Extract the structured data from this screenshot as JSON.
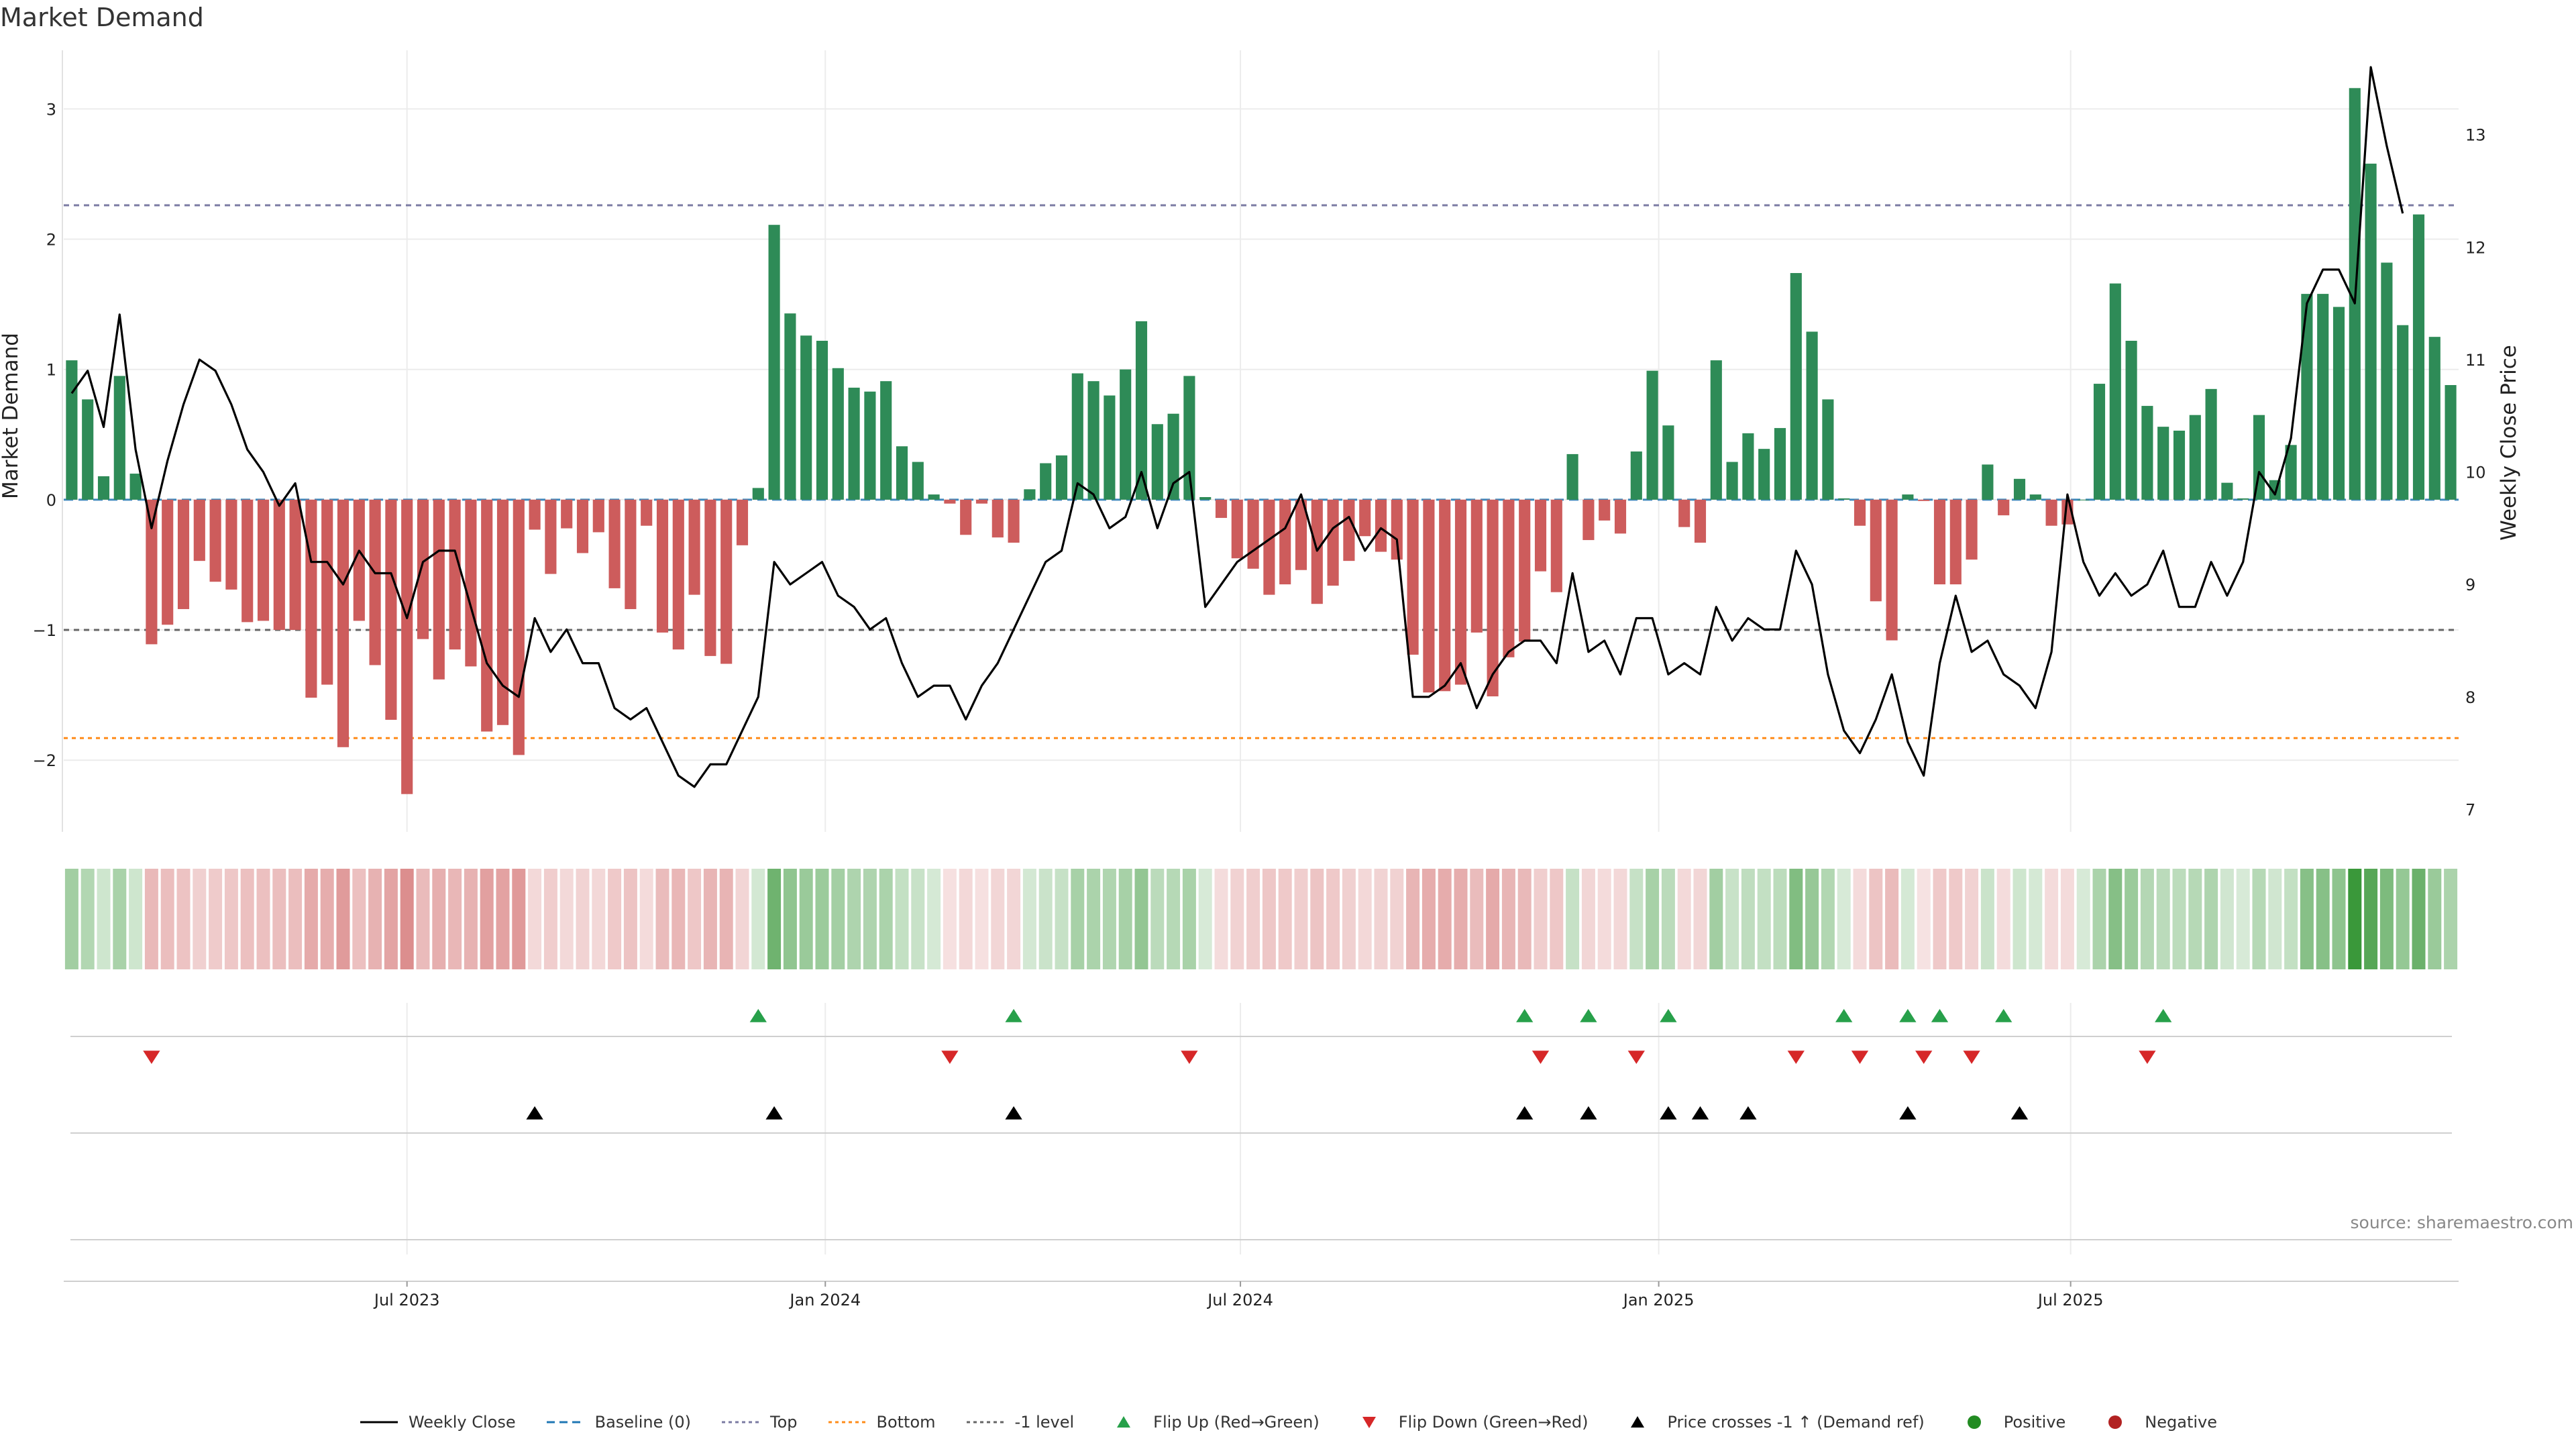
{
  "chart_data": {
    "type": "bar",
    "title": "Market Demand",
    "ylabel_left": "Market Demand",
    "ylabel_right": "Weekly Close Price",
    "ylim_left": [
      -2.55,
      3.45
    ],
    "ylim_right": [
      6.8,
      13.75
    ],
    "yticks_left": [
      3,
      2,
      1,
      0,
      -1,
      -2
    ],
    "yticks_left_labels": [
      "3",
      "2",
      "1",
      "0",
      "−1",
      "−2"
    ],
    "yticks_right": [
      13,
      12,
      11,
      10,
      9,
      8,
      7
    ],
    "yticks_right_labels": [
      "13",
      "12",
      "11",
      "10",
      "9",
      "8",
      "7"
    ],
    "xticks": [
      {
        "week": 21.5,
        "label": "Jul 2023"
      },
      {
        "week": 47.7,
        "label": "Jan 2024"
      },
      {
        "week": 73.7,
        "label": "Jul 2024"
      },
      {
        "week": 99.9,
        "label": "Jan 2025"
      },
      {
        "week": 125.7,
        "label": "Jul 2025"
      }
    ],
    "levels": {
      "top": 2.26,
      "bottom": -1.83,
      "minus_one": -1.0,
      "baseline": 0
    },
    "demand": [
      1.07,
      0.77,
      0.18,
      0.95,
      0.2,
      -1.11,
      -0.96,
      -0.84,
      -0.47,
      -0.63,
      -0.69,
      -0.94,
      -0.93,
      -1.0,
      -1.0,
      -1.52,
      -1.42,
      -1.9,
      -0.93,
      -1.27,
      -1.69,
      -2.26,
      -1.07,
      -1.38,
      -1.15,
      -1.28,
      -1.78,
      -1.73,
      -1.96,
      -0.23,
      -0.57,
      -0.22,
      -0.41,
      -0.25,
      -0.68,
      -0.84,
      -0.2,
      -1.02,
      -1.15,
      -0.73,
      -1.2,
      -1.26,
      -0.35,
      0.09,
      2.11,
      1.43,
      1.26,
      1.22,
      1.01,
      0.86,
      0.83,
      0.91,
      0.41,
      0.29,
      0.04,
      -0.03,
      -0.27,
      -0.03,
      -0.29,
      -0.33,
      0.08,
      0.28,
      0.34,
      0.97,
      0.91,
      0.8,
      1.0,
      1.37,
      0.58,
      0.66,
      0.95,
      0.02,
      -0.14,
      -0.45,
      -0.53,
      -0.73,
      -0.65,
      -0.54,
      -0.8,
      -0.66,
      -0.47,
      -0.28,
      -0.4,
      -0.46,
      -1.19,
      -1.48,
      -1.47,
      -1.42,
      -1.02,
      -1.51,
      -1.21,
      -1.09,
      -0.55,
      -0.71,
      0.35,
      -0.31,
      -0.16,
      -0.26,
      0.37,
      0.99,
      0.57,
      -0.21,
      -0.33,
      1.07,
      0.29,
      0.51,
      0.39,
      0.55,
      1.74,
      1.29,
      0.77,
      0.01,
      -0.2,
      -0.78,
      -1.08,
      0.04,
      -0.01,
      -0.65,
      -0.65,
      -0.46,
      0.27,
      -0.12,
      0.16,
      0.04,
      -0.2,
      -0.19,
      0.0,
      0.89,
      1.66,
      1.22,
      0.72,
      0.56,
      0.53,
      0.65,
      0.85,
      0.13,
      0.01,
      0.65,
      0.15,
      0.42,
      1.58,
      1.58,
      1.48,
      3.16,
      2.58,
      1.82,
      1.34,
      2.19,
      1.25,
      0.88
    ],
    "weekly_close": [
      10.7,
      10.9,
      10.4,
      11.4,
      10.2,
      9.5,
      10.1,
      10.6,
      11.0,
      10.9,
      10.6,
      10.2,
      10.0,
      9.7,
      9.9,
      9.2,
      9.2,
      9.0,
      9.3,
      9.1,
      9.1,
      8.7,
      9.2,
      9.3,
      9.3,
      8.8,
      8.3,
      8.1,
      8.0,
      8.7,
      8.4,
      8.6,
      8.3,
      8.3,
      7.9,
      7.8,
      7.9,
      7.6,
      7.3,
      7.2,
      7.4,
      7.4,
      7.7,
      8.0,
      9.2,
      9.0,
      9.1,
      9.2,
      8.9,
      8.8,
      8.6,
      8.7,
      8.3,
      8.0,
      8.1,
      8.1,
      7.8,
      8.1,
      8.3,
      8.6,
      8.9,
      9.2,
      9.3,
      9.9,
      9.8,
      9.5,
      9.6,
      10.0,
      9.5,
      9.9,
      10.0,
      8.8,
      9.0,
      9.2,
      9.3,
      9.4,
      9.5,
      9.8,
      9.3,
      9.5,
      9.6,
      9.3,
      9.5,
      9.4,
      8.0,
      8.0,
      8.1,
      8.3,
      7.9,
      8.2,
      8.4,
      8.5,
      8.5,
      8.3,
      9.1,
      8.4,
      8.5,
      8.2,
      8.7,
      8.7,
      8.2,
      8.3,
      8.2,
      8.8,
      8.5,
      8.7,
      8.6,
      8.6,
      9.3,
      9.0,
      8.2,
      7.7,
      7.5,
      7.8,
      8.2,
      7.6,
      7.3,
      8.3,
      8.9,
      8.4,
      8.5,
      8.2,
      8.1,
      7.9,
      8.4,
      9.8,
      9.2,
      8.9,
      9.1,
      8.9,
      9.0,
      9.3,
      8.8,
      8.8,
      9.2,
      8.9,
      9.2,
      10.0,
      9.8,
      10.3,
      11.5,
      11.8,
      11.8,
      11.5,
      13.6,
      12.9,
      12.3
    ],
    "flip_up_weeks": [
      43,
      59,
      91,
      95,
      100,
      111,
      115,
      117,
      121,
      131
    ],
    "flip_down_weeks": [
      5,
      55,
      70,
      92,
      98,
      108,
      112,
      116,
      119,
      130
    ],
    "price_cross_weeks": [
      29,
      44,
      59,
      91,
      95,
      100,
      102,
      105,
      115,
      122
    ],
    "colors": {
      "positive_bar": "#2e8b57",
      "negative_bar": "#cd5c5c",
      "weekly_close": "#000000",
      "baseline": "#1f77b4",
      "top": "#7b7ba3",
      "bottom": "#ff8c1a",
      "minus_one": "#666666",
      "flip_up": "#27a04a",
      "flip_down": "#d62728",
      "price_cross": "#000000",
      "positive_dot": "#228b22",
      "negative_dot": "#b22222"
    }
  },
  "legend": [
    {
      "key": "weekly_close",
      "label": "Weekly Close",
      "symbol": "solid-line"
    },
    {
      "key": "baseline",
      "label": "Baseline (0)",
      "symbol": "dashed-line"
    },
    {
      "key": "top",
      "label": "Top",
      "symbol": "dotted-line"
    },
    {
      "key": "bottom",
      "label": "Bottom",
      "symbol": "dotted-line"
    },
    {
      "key": "minus_one",
      "label": "-1 level",
      "symbol": "dotted-line"
    },
    {
      "key": "flip_up",
      "label": "Flip Up (Red→Green)",
      "symbol": "triangle-up"
    },
    {
      "key": "flip_down",
      "label": "Flip Down (Green→Red)",
      "symbol": "triangle-down"
    },
    {
      "key": "price_cross",
      "label": "Price crosses -1 ↑ (Demand ref)",
      "symbol": "triangle-up"
    },
    {
      "key": "positive_dot",
      "label": "Positive",
      "symbol": "dot"
    },
    {
      "key": "negative_dot",
      "label": "Negative",
      "symbol": "dot"
    }
  ],
  "source": "source: sharemaestro.com"
}
